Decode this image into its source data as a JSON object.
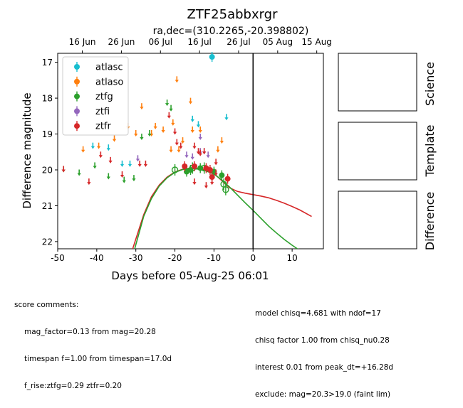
{
  "chart_data": {
    "type": "scatter",
    "title": "ZTF25abbxrgr",
    "subtitle": "ra,dec=(310.2265,-20.398802)",
    "xlabel": "Days before 05-Aug-25 06:01",
    "ylabel": "Difference magnitude",
    "xlim": [
      -50,
      18
    ],
    "ylim": [
      22.2,
      16.75
    ],
    "y_inverted": true,
    "x_ticks": [
      -50,
      -40,
      -30,
      -20,
      -10,
      0,
      10
    ],
    "y_ticks": [
      17,
      18,
      19,
      20,
      21,
      22
    ],
    "top_axis_ticks": [
      {
        "x": -43.7,
        "label": "16 Jun"
      },
      {
        "x": -33.7,
        "label": "26 Jun"
      },
      {
        "x": -23.7,
        "label": "06 Jul"
      },
      {
        "x": -13.7,
        "label": "16 Jul"
      },
      {
        "x": -3.7,
        "label": "26 Jul"
      },
      {
        "x": 6.3,
        "label": "05 Aug"
      },
      {
        "x": 16.3,
        "label": "15 Aug"
      }
    ],
    "vline_x": 0,
    "grid": false,
    "legend_position": "upper-left",
    "series": [
      {
        "name": "atlasc",
        "color": "#17becf",
        "limits": [
          [
            -41,
            19.3
          ],
          [
            -37,
            19.35
          ],
          [
            -31.5,
            19.8
          ],
          [
            -33.5,
            19.8
          ],
          [
            -15.5,
            18.55
          ],
          [
            -14,
            18.7
          ],
          [
            -6.8,
            18.5
          ]
        ],
        "points": [
          [
            -10.5,
            16.85
          ]
        ]
      },
      {
        "name": "atlaso",
        "color": "#ff7f0e",
        "limits": [
          [
            -43.5,
            19.4
          ],
          [
            -39.5,
            19.3
          ],
          [
            -35.5,
            19.1
          ],
          [
            -32,
            18.75
          ],
          [
            -30,
            18.95
          ],
          [
            -28.5,
            18.2
          ],
          [
            -26,
            18.95
          ],
          [
            -25,
            18.75
          ],
          [
            -23,
            18.85
          ],
          [
            -21,
            19.4
          ],
          [
            -20.5,
            18.65
          ],
          [
            -19.5,
            17.45
          ],
          [
            -18,
            19.15
          ],
          [
            -16,
            18.05
          ],
          [
            -15.5,
            18.85
          ],
          [
            -13.5,
            18.85
          ],
          [
            -9,
            19.4
          ],
          [
            -8,
            19.15
          ],
          [
            -19,
            19.4
          ]
        ],
        "points": []
      },
      {
        "name": "ztfg",
        "color": "#2ca02c",
        "limits": [
          [
            -48.5,
            19.95
          ],
          [
            -44.5,
            20.05
          ],
          [
            -40.5,
            19.85
          ],
          [
            -37,
            20.15
          ],
          [
            -33,
            20.25
          ],
          [
            -30.5,
            20.2
          ],
          [
            -28.5,
            19.05
          ],
          [
            -26.5,
            18.95
          ],
          [
            -22,
            18.1
          ],
          [
            -21,
            18.25
          ]
        ],
        "points": [
          [
            -17,
            20.05
          ],
          [
            -13.5,
            19.95
          ],
          [
            -10,
            20.05
          ],
          [
            -8,
            20.15
          ],
          [
            -16,
            20.0
          ]
        ],
        "open_points": [
          [
            -20,
            20.0
          ],
          [
            -15.5,
            19.95
          ],
          [
            -12.5,
            19.95
          ],
          [
            -7.5,
            20.4
          ],
          [
            -7,
            20.55
          ]
        ]
      },
      {
        "name": "ztfi",
        "color": "#9467bd",
        "limits": [
          [
            -29.5,
            19.65
          ],
          [
            -17,
            19.55
          ],
          [
            -15.5,
            19.6
          ],
          [
            -13.5,
            19.45
          ],
          [
            -12.5,
            19.45
          ],
          [
            -11.5,
            19.55
          ],
          [
            -13.5,
            19.05
          ]
        ],
        "points": []
      },
      {
        "name": "ztfr",
        "color": "#d62728",
        "limits": [
          [
            -48.5,
            19.95
          ],
          [
            -42,
            20.3
          ],
          [
            -39,
            19.55
          ],
          [
            -36.5,
            19.7
          ],
          [
            -33.5,
            20.1
          ],
          [
            -29,
            19.8
          ],
          [
            -27.5,
            19.8
          ],
          [
            -21.5,
            18.45
          ],
          [
            -20,
            18.9
          ],
          [
            -19.5,
            19.2
          ],
          [
            -18.5,
            19.3
          ],
          [
            -15,
            19.3
          ],
          [
            -14,
            19.45
          ],
          [
            -13.5,
            19.5
          ],
          [
            -12.5,
            19.45
          ],
          [
            -15,
            20.3
          ],
          [
            -12,
            20.4
          ],
          [
            -10.5,
            20.3
          ],
          [
            -9.5,
            20.05
          ],
          [
            -9.5,
            19.75
          ]
        ],
        "points": [
          [
            -17.5,
            19.9
          ],
          [
            -12,
            19.95
          ],
          [
            -11,
            20.0
          ],
          [
            -10.5,
            20.2
          ],
          [
            -6.5,
            20.25
          ],
          [
            -15,
            19.9
          ]
        ]
      }
    ],
    "model_curves": [
      {
        "color": "#d62728",
        "x": [
          -30.8,
          -28,
          -26,
          -24,
          -22,
          -20,
          -18,
          -16,
          -14,
          -12,
          -10,
          -8,
          -6,
          -4,
          -2,
          0,
          2,
          4,
          6,
          8,
          10,
          12,
          15
        ],
        "y": [
          22.2,
          21.25,
          20.75,
          20.42,
          20.2,
          20.06,
          19.98,
          19.95,
          19.96,
          20.0,
          20.1,
          20.3,
          20.5,
          20.6,
          20.65,
          20.69,
          20.73,
          20.78,
          20.85,
          20.93,
          21.02,
          21.12,
          21.3
        ]
      },
      {
        "color": "#2ca02c",
        "x": [
          -30.3,
          -28,
          -26,
          -24,
          -22,
          -20,
          -18,
          -16,
          -14,
          -12,
          -10,
          -8,
          -6,
          -4,
          -2,
          0,
          2,
          4,
          6,
          8,
          10,
          12
        ],
        "y": [
          22.2,
          21.3,
          20.8,
          20.45,
          20.22,
          20.07,
          19.99,
          19.96,
          19.98,
          20.03,
          20.12,
          20.28,
          20.48,
          20.7,
          20.92,
          21.13,
          21.35,
          21.57,
          21.76,
          21.94,
          22.1,
          22.25
        ]
      }
    ]
  },
  "panels": [
    {
      "label": "Science"
    },
    {
      "label": "Template"
    },
    {
      "label": "Difference"
    }
  ],
  "score_comments": {
    "header": "score comments:",
    "lines": [
      "mag_factor=0.13 from mag=20.28",
      "timespan f=1.00 from timespan=17.0d",
      "f_rise:ztfg=0.29 ztfr=0.20"
    ]
  },
  "model_info": {
    "lines": [
      "model chisq=4.681 with ndof=17",
      "chisq factor 1.00 from chisq_nu0.28",
      "interest 0.01 from peak_dt=+16.28d",
      "exclude: mag=20.3>19.0 (faint lim)"
    ]
  }
}
